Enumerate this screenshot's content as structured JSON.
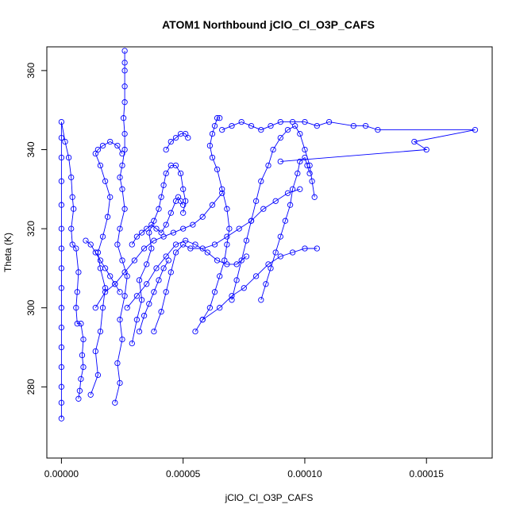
{
  "chart_data": {
    "type": "scatter",
    "title": "ATOM1 Northbound jClO_Cl_O3P_CAFS",
    "xlabel": "jClO_Cl_O3P_CAFS",
    "ylabel": "Theta (K)",
    "xlim": [
      -6e-06,
      0.000177
    ],
    "ylim": [
      262,
      366
    ],
    "x_ticks": [
      0,
      5e-05,
      0.0001,
      0.00015
    ],
    "x_tick_labels": [
      "0.00000",
      "0.00005",
      "0.00010",
      "0.00015"
    ],
    "y_ticks": [
      280,
      300,
      320,
      340,
      360
    ],
    "y_tick_labels": [
      "280",
      "300",
      "320",
      "340",
      "360"
    ],
    "grid": false,
    "marker": "open-circle",
    "line": true,
    "color": "#0000ff",
    "series": [
      {
        "points": [
          [
            0.0,
            272
          ],
          [
            0.0,
            276
          ],
          [
            0.0,
            280
          ],
          [
            0.0,
            285
          ],
          [
            0.0,
            290
          ],
          [
            0.0,
            295
          ],
          [
            0.0,
            300
          ],
          [
            0.0,
            305
          ],
          [
            0.0,
            310
          ],
          [
            0.0,
            315
          ],
          [
            0.0,
            320
          ],
          [
            0.0,
            326
          ],
          [
            0.0,
            332
          ],
          [
            0.0,
            338
          ],
          [
            0.0,
            343
          ],
          [
            0.0,
            347
          ],
          [
            1.5e-06,
            342
          ],
          [
            3e-06,
            338
          ],
          [
            4e-06,
            333
          ],
          [
            4.5e-06,
            328
          ],
          [
            5e-06,
            325
          ],
          [
            4e-06,
            320
          ],
          [
            4.5e-06,
            316
          ],
          [
            6e-06,
            315
          ],
          [
            7e-06,
            309
          ],
          [
            6.5e-06,
            304
          ],
          [
            6e-06,
            300
          ],
          [
            6.5e-06,
            296
          ],
          [
            8e-06,
            296
          ],
          [
            9e-06,
            292
          ],
          [
            8.5e-06,
            288
          ],
          [
            9e-06,
            285
          ],
          [
            8e-06,
            282
          ],
          [
            7.5e-06,
            279
          ],
          [
            7e-06,
            277
          ]
        ]
      },
      {
        "points": [
          [
            1.2e-05,
            278
          ],
          [
            1.5e-05,
            283
          ],
          [
            1.4e-05,
            289
          ],
          [
            1.6e-05,
            294
          ],
          [
            1.7e-05,
            300
          ],
          [
            1.8e-05,
            305
          ],
          [
            1.6e-05,
            310
          ],
          [
            1.5e-05,
            314
          ],
          [
            1.7e-05,
            318
          ],
          [
            1.9e-05,
            323
          ],
          [
            2e-05,
            328
          ],
          [
            1.8e-05,
            332
          ],
          [
            1.6e-05,
            336
          ],
          [
            1.4e-05,
            339
          ],
          [
            1.5e-05,
            340
          ],
          [
            1.7e-05,
            341
          ],
          [
            2e-05,
            342
          ],
          [
            2.3e-05,
            341
          ],
          [
            2.5e-05,
            339
          ]
        ]
      },
      {
        "points": [
          [
            2.2e-05,
            276
          ],
          [
            2.4e-05,
            281
          ],
          [
            2.3e-05,
            286
          ],
          [
            2.5e-05,
            292
          ],
          [
            2.4e-05,
            297
          ],
          [
            2.6e-05,
            303
          ],
          [
            2.7e-05,
            308
          ],
          [
            2.5e-05,
            312
          ],
          [
            2.3e-05,
            316
          ],
          [
            2.4e-05,
            320
          ],
          [
            2.6e-05,
            325
          ],
          [
            2.5e-05,
            330
          ],
          [
            2.4e-05,
            333
          ],
          [
            2.5e-05,
            336
          ],
          [
            2.6e-05,
            340
          ],
          [
            2.6e-05,
            344
          ],
          [
            2.55e-05,
            348
          ],
          [
            2.6e-05,
            352
          ],
          [
            2.6e-05,
            356
          ],
          [
            2.6e-05,
            360
          ],
          [
            2.6e-05,
            362
          ],
          [
            2.6e-05,
            365
          ]
        ]
      },
      {
        "points": [
          [
            2.9e-05,
            291
          ],
          [
            3.1e-05,
            297
          ],
          [
            3.3e-05,
            302
          ],
          [
            3.2e-05,
            307
          ],
          [
            3.5e-05,
            311
          ],
          [
            3.7e-05,
            315
          ],
          [
            3.6e-05,
            319
          ],
          [
            3.8e-05,
            322
          ],
          [
            4e-05,
            325
          ],
          [
            4.1e-05,
            328
          ],
          [
            4.2e-05,
            331
          ],
          [
            4.3e-05,
            334
          ],
          [
            4.5e-05,
            336
          ],
          [
            4.7e-05,
            336
          ],
          [
            4.9e-05,
            334
          ],
          [
            5e-05,
            330
          ],
          [
            5.1e-05,
            327
          ],
          [
            5e-05,
            324
          ]
        ]
      },
      {
        "points": [
          [
            3.8e-05,
            294
          ],
          [
            4.1e-05,
            299
          ],
          [
            4.3e-05,
            304
          ],
          [
            4.5e-05,
            309
          ],
          [
            4.7e-05,
            314
          ],
          [
            5e-05,
            316
          ],
          [
            5.3e-05,
            315
          ],
          [
            5.8e-05,
            315
          ],
          [
            6.3e-05,
            316
          ],
          [
            6.8e-05,
            318
          ],
          [
            7.3e-05,
            320
          ],
          [
            7.8e-05,
            322
          ],
          [
            8.3e-05,
            325
          ],
          [
            8.8e-05,
            327
          ],
          [
            9.3e-05,
            329
          ],
          [
            9.8e-05,
            330
          ]
        ]
      },
      {
        "points": [
          [
            5.5e-05,
            294
          ],
          [
            5.8e-05,
            297
          ],
          [
            6.1e-05,
            300
          ],
          [
            6.3e-05,
            304
          ],
          [
            6.5e-05,
            308
          ],
          [
            6.7e-05,
            312
          ],
          [
            6.8e-05,
            316
          ],
          [
            6.9e-05,
            320
          ],
          [
            6.8e-05,
            325
          ],
          [
            6.6e-05,
            330
          ],
          [
            6.4e-05,
            335
          ],
          [
            6.2e-05,
            338
          ],
          [
            6.1e-05,
            341
          ],
          [
            6.2e-05,
            344
          ],
          [
            6.3e-05,
            346
          ],
          [
            6.4e-05,
            348
          ],
          [
            6.5e-05,
            348
          ]
        ]
      },
      {
        "points": [
          [
            5.8e-05,
            297
          ],
          [
            6.5e-05,
            300
          ],
          [
            7e-05,
            303
          ],
          [
            7.5e-05,
            305
          ],
          [
            8e-05,
            308
          ],
          [
            8.5e-05,
            311
          ],
          [
            9e-05,
            313
          ],
          [
            9.5e-05,
            314
          ],
          [
            0.0001,
            315
          ],
          [
            0.000105,
            315
          ]
        ]
      },
      {
        "points": [
          [
            6.6e-05,
            345
          ],
          [
            7e-05,
            346
          ],
          [
            7.4e-05,
            347
          ],
          [
            7.8e-05,
            346
          ],
          [
            8.2e-05,
            345
          ],
          [
            8.6e-05,
            346
          ],
          [
            9e-05,
            347
          ],
          [
            9.5e-05,
            347
          ],
          [
            0.0001,
            347
          ],
          [
            0.000105,
            346
          ],
          [
            0.00011,
            347
          ],
          [
            0.00012,
            346
          ],
          [
            0.000125,
            346
          ],
          [
            0.00013,
            345
          ],
          [
            0.00017,
            345
          ],
          [
            0.000145,
            342
          ],
          [
            0.00015,
            340
          ],
          [
            9e-05,
            337
          ]
        ]
      },
      {
        "points": [
          [
            7e-05,
            302
          ],
          [
            7.2e-05,
            307
          ],
          [
            7.4e-05,
            312
          ],
          [
            7.6e-05,
            317
          ],
          [
            7.8e-05,
            322
          ],
          [
            8e-05,
            327
          ],
          [
            8.2e-05,
            332
          ],
          [
            8.5e-05,
            336
          ],
          [
            8.7e-05,
            340
          ],
          [
            9e-05,
            343
          ],
          [
            9.3e-05,
            345
          ],
          [
            9.6e-05,
            346
          ],
          [
            9.8e-05,
            344
          ],
          [
            0.0001,
            340
          ],
          [
            0.000102,
            336
          ],
          [
            0.000103,
            332
          ],
          [
            0.000104,
            328
          ]
        ]
      },
      {
        "points": [
          [
            8.2e-05,
            302
          ],
          [
            8.4e-05,
            306
          ],
          [
            8.6e-05,
            310
          ],
          [
            8.8e-05,
            314
          ],
          [
            9e-05,
            318
          ],
          [
            9.2e-05,
            322
          ],
          [
            9.4e-05,
            326
          ],
          [
            9.5e-05,
            330
          ],
          [
            9.7e-05,
            334
          ],
          [
            9.8e-05,
            337
          ],
          [
            0.0001,
            338
          ],
          [
            0.000101,
            336
          ],
          [
            0.000102,
            334
          ]
        ]
      },
      {
        "points": [
          [
            1.4e-05,
            300
          ],
          [
            1.8e-05,
            304
          ],
          [
            2.2e-05,
            306
          ],
          [
            2.6e-05,
            309
          ],
          [
            3e-05,
            312
          ],
          [
            3.4e-05,
            315
          ],
          [
            3.8e-05,
            317
          ],
          [
            4.2e-05,
            318
          ],
          [
            4.6e-05,
            319
          ],
          [
            5e-05,
            320
          ],
          [
            5.4e-05,
            321
          ],
          [
            5.8e-05,
            323
          ],
          [
            6.2e-05,
            326
          ],
          [
            6.6e-05,
            329
          ]
        ]
      },
      {
        "points": [
          [
            2.7e-05,
            300
          ],
          [
            3.1e-05,
            303
          ],
          [
            3.5e-05,
            306
          ],
          [
            3.9e-05,
            310
          ],
          [
            4.3e-05,
            313
          ],
          [
            4.7e-05,
            316
          ],
          [
            5.1e-05,
            317
          ],
          [
            5.5e-05,
            316
          ],
          [
            6e-05,
            314
          ],
          [
            6.4e-05,
            312
          ],
          [
            6.8e-05,
            311
          ],
          [
            7.2e-05,
            311
          ],
          [
            7.6e-05,
            313
          ]
        ]
      },
      {
        "points": [
          [
            2.9e-05,
            316
          ],
          [
            3.1e-05,
            318
          ],
          [
            3.3e-05,
            319
          ],
          [
            3.5e-05,
            320
          ],
          [
            3.7e-05,
            321
          ],
          [
            3.9e-05,
            320
          ],
          [
            4.1e-05,
            319
          ],
          [
            4.3e-05,
            321
          ],
          [
            4.5e-05,
            324
          ],
          [
            4.7e-05,
            327
          ],
          [
            4.8e-05,
            328
          ],
          [
            4.9e-05,
            327
          ],
          [
            5e-05,
            326
          ]
        ]
      },
      {
        "points": [
          [
            4.3e-05,
            340
          ],
          [
            4.5e-05,
            342
          ],
          [
            4.7e-05,
            343
          ],
          [
            4.9e-05,
            344
          ],
          [
            5.1e-05,
            344
          ],
          [
            5.2e-05,
            343
          ]
        ]
      },
      {
        "points": [
          [
            1e-05,
            317
          ],
          [
            1.2e-05,
            316
          ],
          [
            1.4e-05,
            314
          ],
          [
            1.6e-05,
            312
          ],
          [
            1.8e-05,
            310
          ],
          [
            2e-05,
            308
          ],
          [
            2.2e-05,
            306
          ],
          [
            2.4e-05,
            304
          ]
        ]
      },
      {
        "points": [
          [
            3.2e-05,
            294
          ],
          [
            3.4e-05,
            298
          ],
          [
            3.6e-05,
            301
          ],
          [
            3.8e-05,
            304
          ],
          [
            4e-05,
            307
          ],
          [
            4.2e-05,
            310
          ],
          [
            4.4e-05,
            312
          ]
        ]
      }
    ]
  }
}
